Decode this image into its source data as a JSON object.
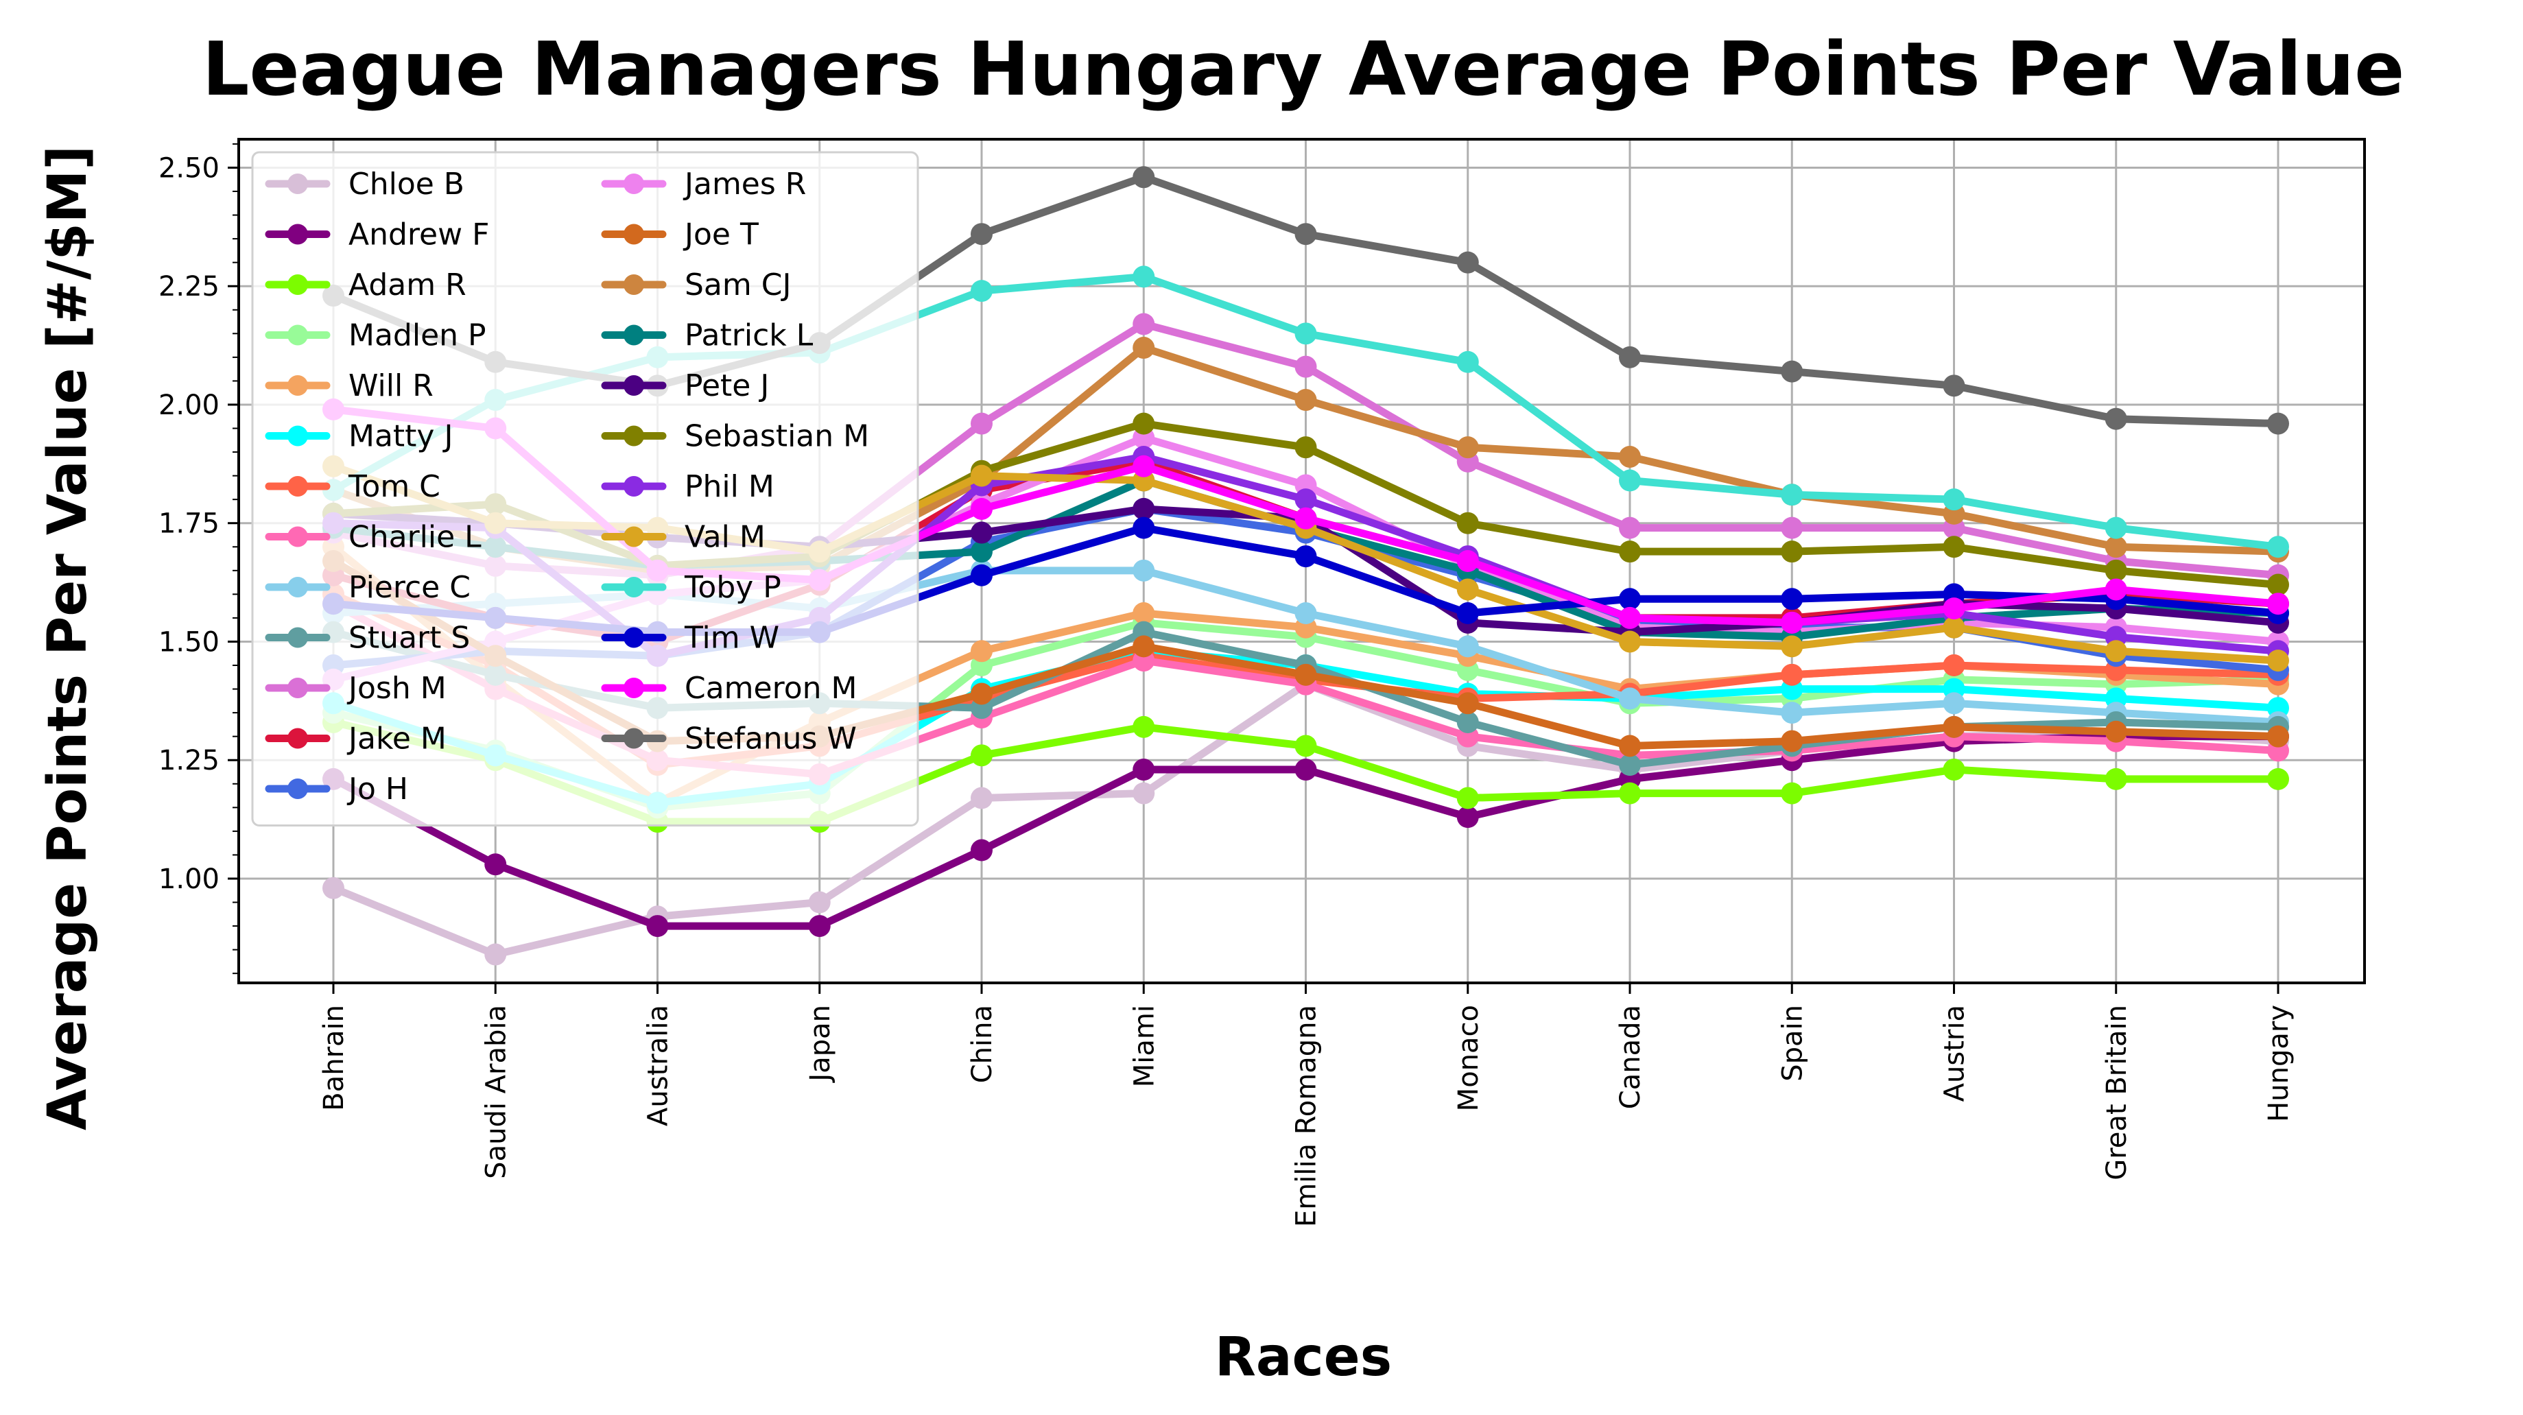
{
  "chart_data": {
    "type": "line",
    "title": "League Managers Hungary Average Points Per Value",
    "xlabel": "Races",
    "ylabel": "Average Points Per Value [#/$M]",
    "categories": [
      "Bahrain",
      "Saudi Arabia",
      "Australia",
      "Japan",
      "China",
      "Miami",
      "Emilia Romagna",
      "Monaco",
      "Canada",
      "Spain",
      "Austria",
      "Great Britain",
      "Hungary"
    ],
    "ylim": [
      0.78,
      2.56
    ],
    "yticks": [
      "1.00",
      "1.25",
      "1.50",
      "1.75",
      "2.00",
      "2.25",
      "2.50"
    ],
    "grid": true,
    "legend_placement": "upper-left, two columns",
    "series": [
      {
        "name": "Chloe B",
        "color": "#d8bfd8",
        "values": [
          0.98,
          0.84,
          0.92,
          0.95,
          1.17,
          1.18,
          1.41,
          1.28,
          1.23,
          1.27,
          1.3,
          1.31,
          1.29
        ]
      },
      {
        "name": "Andrew F",
        "color": "#800080",
        "values": [
          1.21,
          1.03,
          0.9,
          0.9,
          1.06,
          1.23,
          1.23,
          1.13,
          1.21,
          1.25,
          1.29,
          1.3,
          1.3
        ]
      },
      {
        "name": "Adam R",
        "color": "#7cfc00",
        "values": [
          1.33,
          1.25,
          1.12,
          1.12,
          1.26,
          1.32,
          1.28,
          1.17,
          1.18,
          1.18,
          1.23,
          1.21,
          1.21
        ]
      },
      {
        "name": "Madlen P",
        "color": "#98fb98",
        "values": [
          1.35,
          1.27,
          1.15,
          1.18,
          1.45,
          1.54,
          1.51,
          1.44,
          1.37,
          1.38,
          1.42,
          1.41,
          1.42
        ]
      },
      {
        "name": "Will R",
        "color": "#f4a460",
        "values": [
          1.7,
          1.42,
          1.16,
          1.33,
          1.48,
          1.56,
          1.53,
          1.47,
          1.4,
          1.43,
          1.45,
          1.43,
          1.41
        ]
      },
      {
        "name": "Matty J",
        "color": "#00ffff",
        "values": [
          1.37,
          1.26,
          1.16,
          1.2,
          1.4,
          1.48,
          1.45,
          1.39,
          1.38,
          1.4,
          1.4,
          1.38,
          1.36
        ]
      },
      {
        "name": "Tom C",
        "color": "#ff6347",
        "values": [
          1.6,
          1.45,
          1.24,
          1.28,
          1.38,
          1.47,
          1.42,
          1.38,
          1.39,
          1.43,
          1.45,
          1.44,
          1.43
        ]
      },
      {
        "name": "Charlie L",
        "color": "#ff69b4",
        "values": [
          1.58,
          1.4,
          1.25,
          1.22,
          1.34,
          1.46,
          1.41,
          1.3,
          1.26,
          1.27,
          1.3,
          1.29,
          1.27
        ]
      },
      {
        "name": "Pierce C",
        "color": "#87ceeb",
        "values": [
          1.56,
          1.58,
          1.6,
          1.57,
          1.65,
          1.65,
          1.56,
          1.49,
          1.38,
          1.35,
          1.37,
          1.35,
          1.33
        ]
      },
      {
        "name": "Stuart S",
        "color": "#5f9ea0",
        "values": [
          1.52,
          1.43,
          1.36,
          1.37,
          1.36,
          1.52,
          1.45,
          1.33,
          1.24,
          1.28,
          1.32,
          1.33,
          1.32
        ]
      },
      {
        "name": "Josh M",
        "color": "#da70d6",
        "values": [
          1.73,
          1.66,
          1.64,
          1.7,
          1.96,
          2.17,
          2.08,
          1.88,
          1.74,
          1.74,
          1.74,
          1.67,
          1.64
        ]
      },
      {
        "name": "Jake M",
        "color": "#dc143c",
        "values": [
          1.64,
          1.55,
          1.5,
          1.62,
          1.82,
          1.88,
          1.76,
          1.67,
          1.55,
          1.55,
          1.58,
          1.6,
          1.58
        ]
      },
      {
        "name": "Jo H",
        "color": "#4169e1",
        "values": [
          1.45,
          1.48,
          1.47,
          1.52,
          1.71,
          1.78,
          1.73,
          1.64,
          1.54,
          1.53,
          1.53,
          1.47,
          1.44
        ]
      },
      {
        "name": "James R",
        "color": "#ee82ee",
        "values": [
          1.42,
          1.5,
          1.6,
          1.63,
          1.79,
          1.93,
          1.83,
          1.66,
          1.53,
          1.52,
          1.54,
          1.53,
          1.5
        ]
      },
      {
        "name": "Joe T",
        "color": "#d2691e",
        "values": [
          1.67,
          1.47,
          1.29,
          1.3,
          1.39,
          1.49,
          1.43,
          1.37,
          1.28,
          1.29,
          1.32,
          1.31,
          1.3
        ]
      },
      {
        "name": "Sam CJ",
        "color": "#cd853f",
        "values": [
          1.82,
          1.7,
          1.65,
          1.66,
          1.84,
          2.12,
          2.01,
          1.91,
          1.89,
          1.81,
          1.77,
          1.7,
          1.69
        ]
      },
      {
        "name": "Patrick L",
        "color": "#008080",
        "values": [
          1.74,
          1.7,
          1.66,
          1.67,
          1.69,
          1.84,
          1.74,
          1.65,
          1.52,
          1.51,
          1.55,
          1.57,
          1.56
        ]
      },
      {
        "name": "Pete J",
        "color": "#4b0082",
        "values": [
          1.77,
          1.75,
          1.72,
          1.7,
          1.73,
          1.78,
          1.76,
          1.54,
          1.52,
          1.54,
          1.58,
          1.57,
          1.54
        ]
      },
      {
        "name": "Sebastian M",
        "color": "#808000",
        "values": [
          1.77,
          1.79,
          1.66,
          1.68,
          1.86,
          1.96,
          1.91,
          1.75,
          1.69,
          1.69,
          1.7,
          1.65,
          1.62
        ]
      },
      {
        "name": "Phil M",
        "color": "#8a2be2",
        "values": [
          1.75,
          1.74,
          1.47,
          1.55,
          1.83,
          1.89,
          1.8,
          1.68,
          1.55,
          1.54,
          1.56,
          1.51,
          1.48
        ]
      },
      {
        "name": "Val M",
        "color": "#daa520",
        "values": [
          1.87,
          1.75,
          1.74,
          1.69,
          1.85,
          1.84,
          1.74,
          1.61,
          1.5,
          1.49,
          1.53,
          1.48,
          1.46
        ]
      },
      {
        "name": "Toby P",
        "color": "#40e0d0",
        "values": [
          1.82,
          2.01,
          2.1,
          2.11,
          2.24,
          2.27,
          2.15,
          2.09,
          1.84,
          1.81,
          1.8,
          1.74,
          1.7
        ]
      },
      {
        "name": "Tim W",
        "color": "#0000cd",
        "values": [
          1.58,
          1.55,
          1.52,
          1.52,
          1.64,
          1.74,
          1.68,
          1.56,
          1.59,
          1.59,
          1.6,
          1.59,
          1.56
        ]
      },
      {
        "name": "Cameron M",
        "color": "#ff00ff",
        "values": [
          1.99,
          1.95,
          1.65,
          1.63,
          1.78,
          1.87,
          1.76,
          1.67,
          1.55,
          1.54,
          1.57,
          1.61,
          1.58
        ]
      },
      {
        "name": "Stefanus W",
        "color": "#696969",
        "values": [
          2.23,
          2.09,
          2.04,
          2.13,
          2.36,
          2.48,
          2.36,
          2.3,
          2.1,
          2.07,
          2.04,
          1.97,
          1.96
        ]
      }
    ]
  }
}
